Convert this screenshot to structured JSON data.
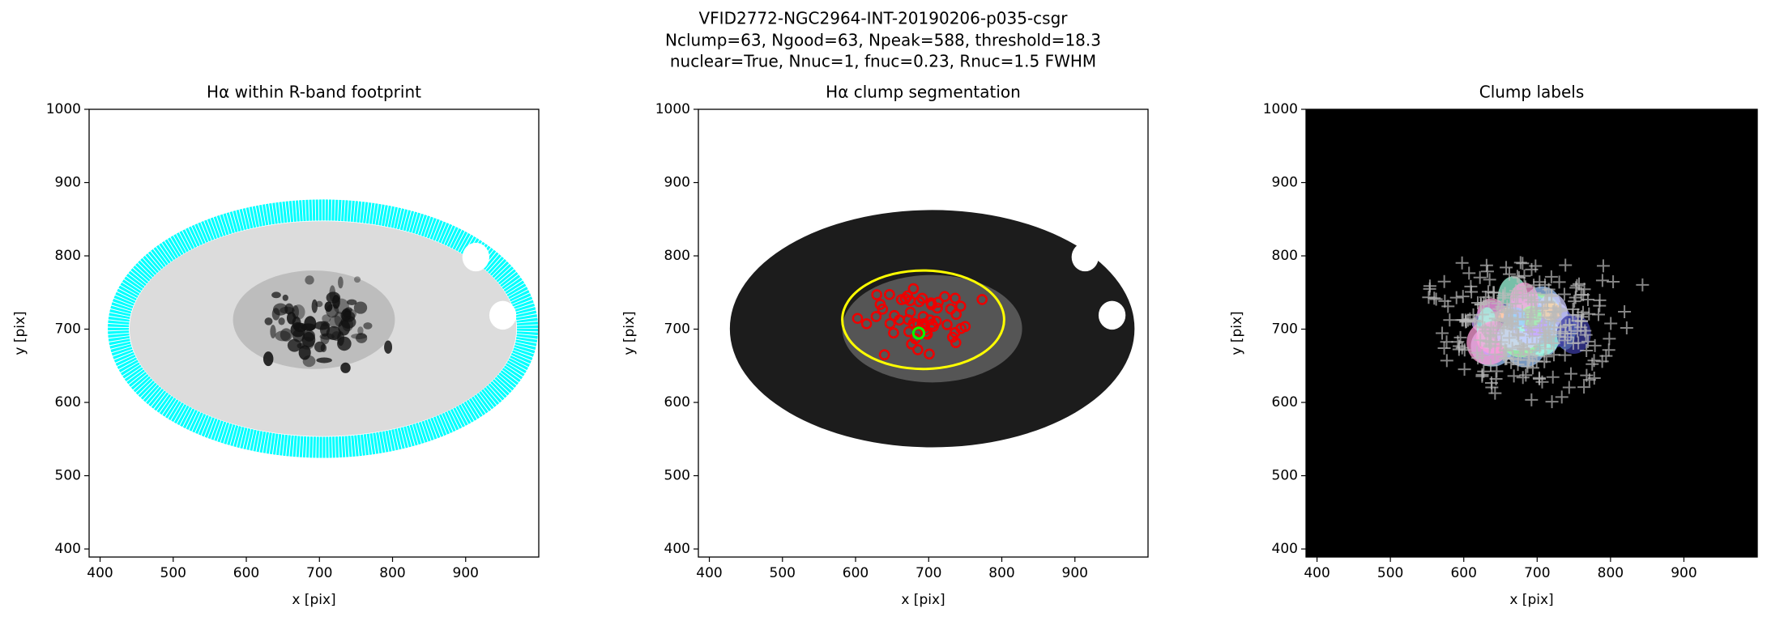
{
  "figure": {
    "title_lines": [
      "VFID2772-NGC2964-INT-20190206-p035-csgr",
      "Nclump=63, Ngood=63, Npeak=588, threshold=18.3",
      "nuclear=True, Nnuc=1, fnuc=0.23, Rnuc=1.5 FWHM"
    ]
  },
  "chart_data": [
    {
      "type": "image",
      "title": "Hα within R-band footprint",
      "xlabel": "x [pix]",
      "ylabel": "y [pix]",
      "xlim": [
        385,
        1000
      ],
      "ylim": [
        389,
        1000
      ],
      "xticks": [
        400,
        500,
        600,
        700,
        800,
        900
      ],
      "yticks": [
        400,
        500,
        600,
        700,
        800,
        900,
        1000
      ]
    },
    {
      "type": "image",
      "title": "Hα clump segmentation",
      "xlabel": "x [pix]",
      "ylabel": "y [pix]",
      "xlim": [
        385,
        1000
      ],
      "ylim": [
        389,
        1000
      ],
      "xticks": [
        400,
        500,
        600,
        700,
        800,
        900
      ],
      "yticks": [
        400,
        500,
        600,
        700,
        800,
        900,
        1000
      ]
    },
    {
      "type": "image",
      "title": "Clump labels",
      "xlabel": "x [pix]",
      "ylabel": "y [pix]",
      "xlim": [
        385,
        1000
      ],
      "ylim": [
        389,
        1000
      ],
      "xticks": [
        400,
        500,
        600,
        700,
        800,
        900
      ],
      "yticks": [
        400,
        500,
        600,
        700,
        800,
        900,
        1000
      ]
    }
  ]
}
